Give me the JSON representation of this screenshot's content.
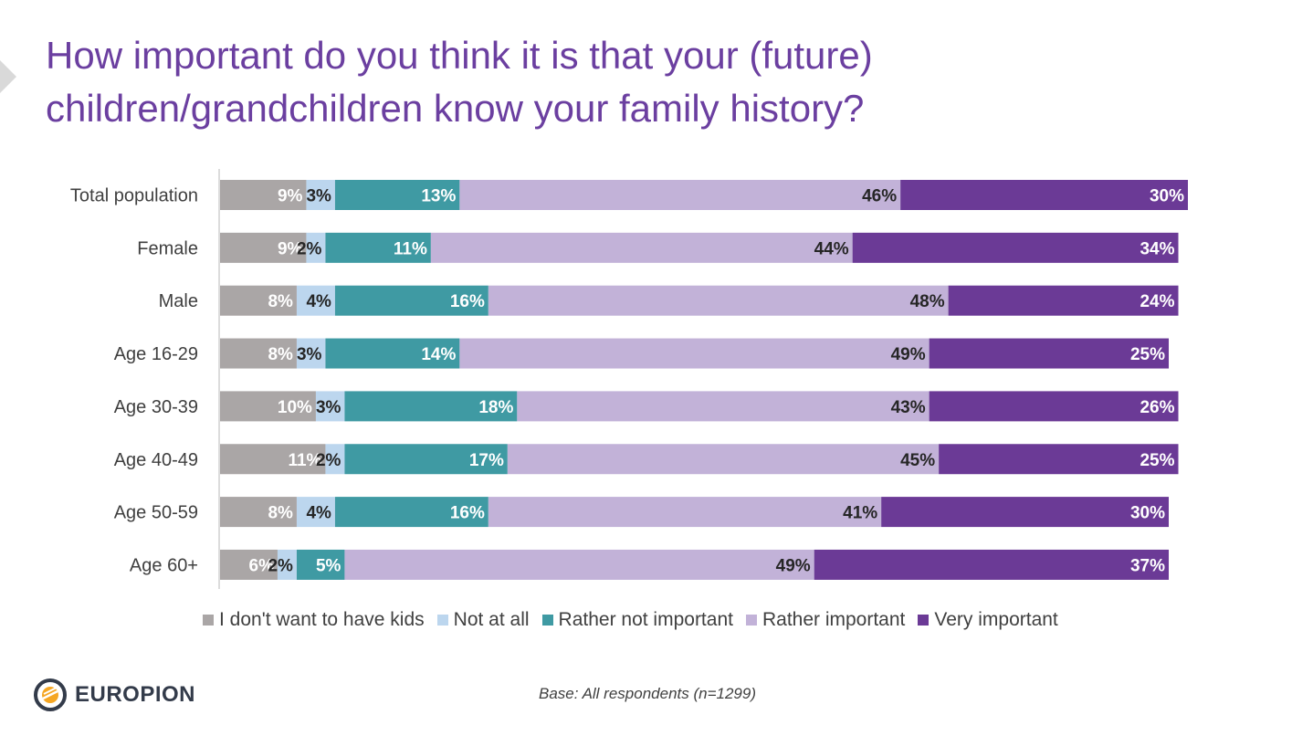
{
  "title_lines": [
    "How important do you think it is that your (future)",
    "children/grandchildren know your family history?"
  ],
  "footnote": "Base: All respondents (n=1299)",
  "logo": {
    "text": "EUROPION",
    "icon": "europion-logo-icon"
  },
  "colors": {
    "no_kids": "#aaa6a6",
    "not_at_all": "#bcd6ee",
    "rather_not": "#3f9aa3",
    "rather_imp": "#c2b2d8",
    "very_imp": "#6b3a96",
    "title": "#6b3fa0"
  },
  "chart_data": {
    "type": "bar",
    "orientation": "horizontal",
    "stacked": true,
    "title": "How important do you think it is that your (future) children/grandchildren know your family history?",
    "categories": [
      "Total population",
      "Female",
      "Male",
      "Age 16-29",
      "Age 30-39",
      "Age 40-49",
      "Age 50-59",
      "Age 60+"
    ],
    "series": [
      {
        "name": "I don't want to have kids",
        "values": [
          9,
          9,
          8,
          8,
          10,
          11,
          8,
          6
        ],
        "labels": [
          "9%",
          "9%",
          "8%",
          "8%",
          "10%",
          "11%",
          "8%",
          "6%"
        ],
        "color": "#aaa6a6",
        "label_color": "#ffffff"
      },
      {
        "name": "Not at all",
        "values": [
          3,
          2,
          4,
          3,
          3,
          2,
          4,
          2
        ],
        "labels": [
          "3%",
          "2%",
          "4%",
          "3%",
          "3%",
          "2%",
          "4%",
          "2%"
        ],
        "color": "#bcd6ee",
        "label_color": "#262626"
      },
      {
        "name": "Rather not important",
        "values": [
          13,
          11,
          16,
          14,
          18,
          17,
          16,
          5
        ],
        "labels": [
          "13%",
          "11%",
          "16%",
          "14%",
          "18%",
          "17%",
          "16%",
          "5%"
        ],
        "color": "#3f9aa3",
        "label_color": "#ffffff"
      },
      {
        "name": "Rather important",
        "values": [
          46,
          44,
          48,
          49,
          43,
          45,
          41,
          49
        ],
        "labels": [
          "46%",
          "44%",
          "48%",
          "49%",
          "43%",
          "45%",
          "41%",
          "49%"
        ],
        "color": "#c2b2d8",
        "label_color": "#262626"
      },
      {
        "name": "Very important",
        "values": [
          30,
          34,
          24,
          25,
          26,
          25,
          30,
          37
        ],
        "labels": [
          "30%",
          "34%",
          "24%",
          "25%",
          "26%",
          "25%",
          "30%",
          "37%"
        ],
        "color": "#6b3a96",
        "label_color": "#ffffff"
      }
    ],
    "xlim": [
      0,
      101
    ],
    "grid": false,
    "legend_position": "bottom"
  }
}
